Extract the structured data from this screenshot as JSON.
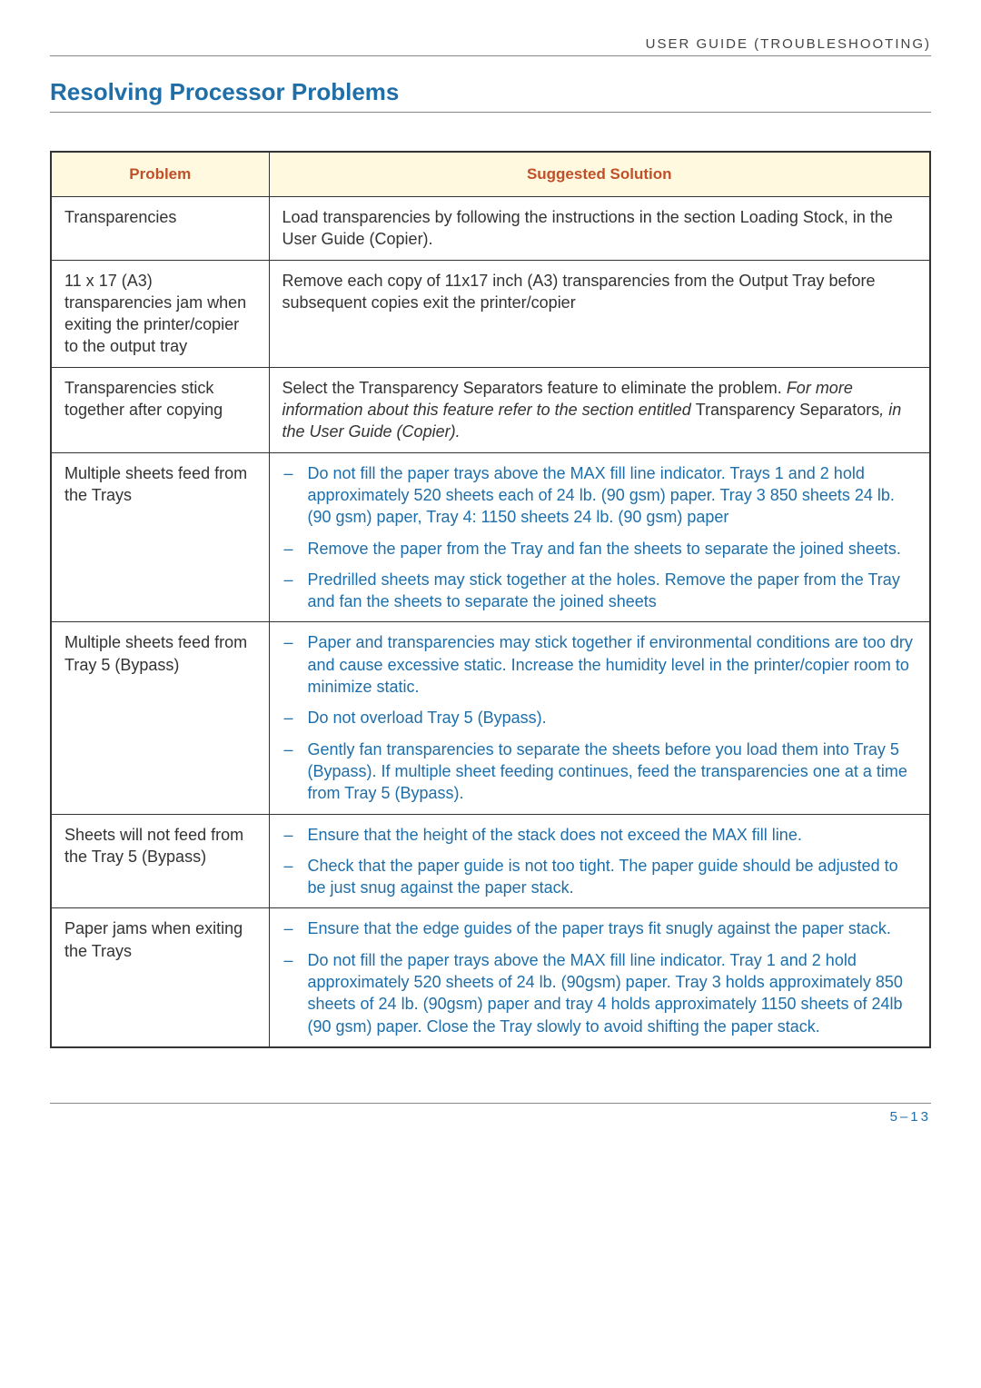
{
  "colors": {
    "title_color": "#1f6ea8",
    "header_bg": "#fff9e0",
    "header_text_color": "#c05028",
    "link_color": "#1f6ea8",
    "page_num_color": "#1f6ea8",
    "body_text": "#333333",
    "border_color": "#333333"
  },
  "header": "USER GUIDE (TROUBLESHOOTING)",
  "title": "Resolving Processor Problems",
  "table": {
    "col_problem": "Problem",
    "col_solution": "Suggested Solution"
  },
  "rows": [
    {
      "problem": "Transparencies",
      "plain": "Load transparencies by following the instructions in the section Loading Stock, in the User Guide (Copier)."
    },
    {
      "problem": "11 x 17 (A3) transparencies jam when exiting the printer/copier to the output tray",
      "plain": "Remove each copy of 11x17 inch (A3) transparencies from the Output Tray before subsequent copies exit the printer/copier"
    },
    {
      "problem": "Transparencies stick together after copying",
      "plain_parts": [
        {
          "t": "Select the Transparency Separators feature to eliminate the problem. "
        },
        {
          "t": "For more information about this feature refer to the section entitled ",
          "italic": true
        },
        {
          "t": "Transparency Separators"
        },
        {
          "t": ", in the User Guide (Copier).",
          "italic": true
        }
      ]
    },
    {
      "problem": "Multiple sheets feed from the Trays",
      "items": [
        "Do not fill the paper trays above the MAX fill line indicator. Trays 1 and 2 hold approximately 520 sheets each of 24 lb. (90 gsm) paper. Tray 3 850 sheets 24 lb. (90 gsm) paper, Tray 4: 1150 sheets 24 lb. (90 gsm) paper",
        "Remove the paper from the Tray and fan the sheets to separate the joined sheets.",
        "Predrilled sheets may stick together at the holes. Remove the paper from the Tray and fan the sheets to separate the joined sheets"
      ]
    },
    {
      "problem": "Multiple sheets feed from Tray 5 (Bypass)",
      "items": [
        "Paper and transparencies may stick together if environmental conditions are too dry and cause excessive static. Increase the humidity level in the printer/copier room to minimize static.",
        "Do not overload Tray 5 (Bypass).",
        "Gently fan transparencies to separate the sheets before you load them into Tray 5 (Bypass). If multiple sheet feeding continues, feed the transparencies one at a time from Tray 5 (Bypass)."
      ]
    },
    {
      "problem": "Sheets will not feed from the Tray 5 (Bypass)",
      "items": [
        "Ensure that the height of the stack does not exceed the MAX fill line.",
        "Check that the paper guide is not too tight. The paper guide should be adjusted to be just snug against the paper stack."
      ]
    },
    {
      "problem": "Paper jams when exiting the Trays",
      "items": [
        "Ensure that the edge guides of the paper trays fit snugly against the paper stack.",
        "Do not fill the paper trays above the MAX fill line indicator. Tray 1 and 2 hold approximately 520 sheets of 24 lb. (90gsm) paper. Tray 3 holds approximately 850 sheets of 24 lb. (90gsm) paper and tray 4 holds approximately 1150 sheets of 24lb (90 gsm) paper. Close the Tray slowly to avoid shifting the paper stack."
      ]
    }
  ],
  "page_num": "5–13"
}
